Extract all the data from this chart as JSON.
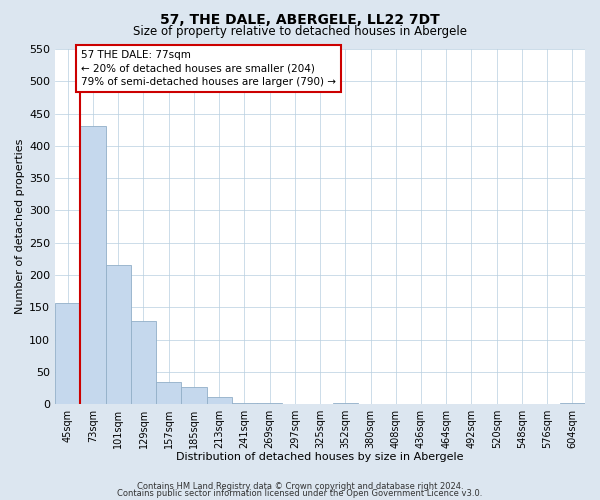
{
  "title": "57, THE DALE, ABERGELE, LL22 7DT",
  "subtitle": "Size of property relative to detached houses in Abergele",
  "xlabel": "Distribution of detached houses by size in Abergele",
  "ylabel": "Number of detached properties",
  "bar_labels": [
    "45sqm",
    "73sqm",
    "101sqm",
    "129sqm",
    "157sqm",
    "185sqm",
    "213sqm",
    "241sqm",
    "269sqm",
    "297sqm",
    "325sqm",
    "352sqm",
    "380sqm",
    "408sqm",
    "436sqm",
    "464sqm",
    "492sqm",
    "520sqm",
    "548sqm",
    "576sqm",
    "604sqm"
  ],
  "bar_values": [
    157,
    430,
    215,
    128,
    35,
    26,
    11,
    2,
    1,
    0,
    0,
    1,
    0,
    0,
    0,
    0,
    0,
    0,
    0,
    0,
    2
  ],
  "bar_color": "#c5d8ed",
  "bar_edgecolor": "#92afc8",
  "vline_color": "#cc0000",
  "annotation_title": "57 THE DALE: 77sqm",
  "annotation_line1": "← 20% of detached houses are smaller (204)",
  "annotation_line2": "79% of semi-detached houses are larger (790) →",
  "annotation_box_color": "#cc0000",
  "ylim": [
    0,
    550
  ],
  "yticks": [
    0,
    50,
    100,
    150,
    200,
    250,
    300,
    350,
    400,
    450,
    500,
    550
  ],
  "footer1": "Contains HM Land Registry data © Crown copyright and database right 2024.",
  "footer2": "Contains public sector information licensed under the Open Government Licence v3.0.",
  "bg_color": "#dce6f0",
  "plot_bg_color": "#ffffff",
  "grid_color": "#b8cfe0"
}
